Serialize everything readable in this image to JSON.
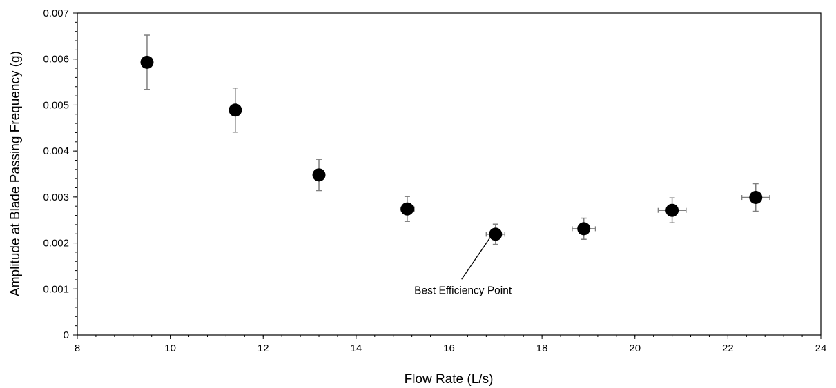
{
  "chart_data": {
    "type": "scatter",
    "xlabel": "Flow Rate (L/s)",
    "ylabel": "Amplitude at Blade Passing Frequency (g)",
    "xlim": [
      8,
      24
    ],
    "ylim": [
      0,
      0.007
    ],
    "x_ticks": [
      8,
      10,
      12,
      14,
      16,
      18,
      20,
      22,
      24
    ],
    "y_ticks": [
      0,
      0.001,
      0.002,
      0.003,
      0.004,
      0.005,
      0.006,
      0.007
    ],
    "x_tick_labels": [
      "8",
      "10",
      "12",
      "14",
      "16",
      "18",
      "20",
      "22",
      "24"
    ],
    "y_tick_labels": [
      "0",
      "0.001",
      "0.002",
      "0.003",
      "0.004",
      "0.005",
      "0.006",
      "0.007"
    ],
    "grid": false,
    "marker_color": "#000000",
    "errorbar_color": "#7f7f7f",
    "points": [
      {
        "x": 9.5,
        "y": 0.00593,
        "y_err": 0.00059,
        "x_err": 0.0
      },
      {
        "x": 11.4,
        "y": 0.00489,
        "y_err": 0.00048,
        "x_err": 0.0
      },
      {
        "x": 13.2,
        "y": 0.00348,
        "y_err": 0.00034,
        "x_err": 0.1
      },
      {
        "x": 15.1,
        "y": 0.00274,
        "y_err": 0.00027,
        "x_err": 0.15
      },
      {
        "x": 17.0,
        "y": 0.00219,
        "y_err": 0.00022,
        "x_err": 0.2
      },
      {
        "x": 18.9,
        "y": 0.00231,
        "y_err": 0.00023,
        "x_err": 0.25
      },
      {
        "x": 20.8,
        "y": 0.00271,
        "y_err": 0.00027,
        "x_err": 0.3
      },
      {
        "x": 22.6,
        "y": 0.00299,
        "y_err": 0.0003,
        "x_err": 0.3
      }
    ],
    "annotations": [
      {
        "text": "Best Efficiency Point",
        "target_x": 17.0,
        "target_y": 0.00219,
        "text_x": 16.3,
        "text_y": 0.00121
      }
    ]
  }
}
